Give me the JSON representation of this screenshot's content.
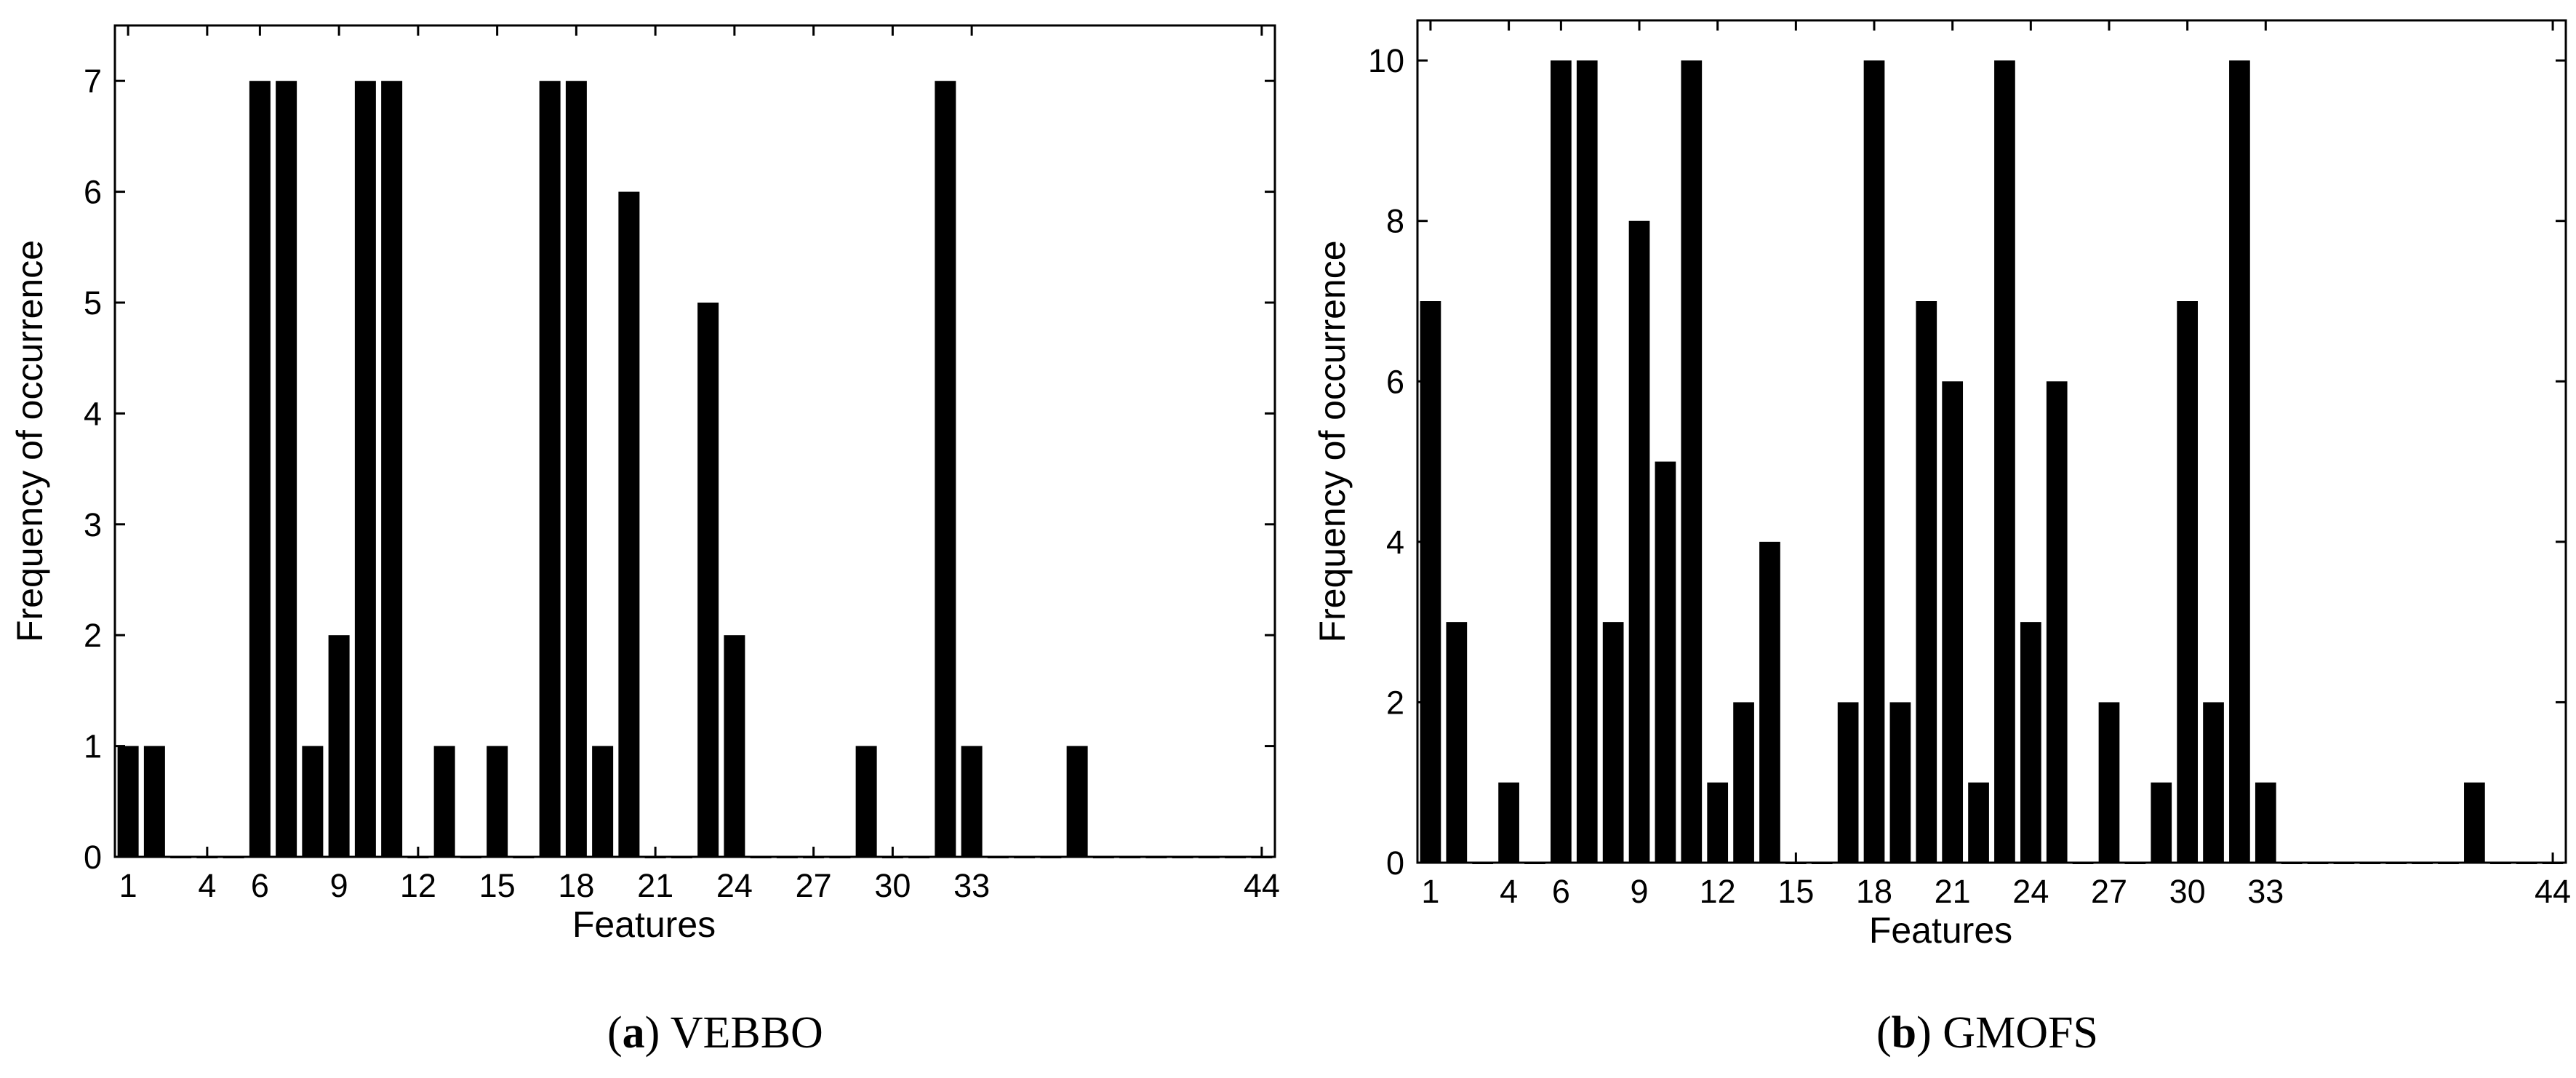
{
  "captions": [
    {
      "letter": "a",
      "name": "VEBBO"
    },
    {
      "letter": "b",
      "name": "GMOFS"
    }
  ],
  "chart_data": [
    {
      "type": "bar",
      "xlabel": "Features",
      "ylabel": "Frequency of occurrence",
      "xlim": [
        0.5,
        44.5
      ],
      "ylim": [
        0,
        7.5
      ],
      "xticks": [
        1,
        4,
        6,
        9,
        12,
        15,
        18,
        21,
        24,
        27,
        30,
        33,
        44
      ],
      "yticks": [
        0,
        1,
        2,
        3,
        4,
        5,
        6,
        7
      ],
      "grid": false,
      "bar_color": "#000000",
      "x": [
        1,
        2,
        3,
        4,
        5,
        6,
        7,
        8,
        9,
        10,
        11,
        12,
        13,
        14,
        15,
        16,
        17,
        18,
        19,
        20,
        21,
        22,
        23,
        24,
        25,
        26,
        27,
        28,
        29,
        30,
        31,
        32,
        33,
        34,
        35,
        36,
        37,
        38,
        39,
        40,
        41,
        42,
        43,
        44
      ],
      "values": [
        1,
        1,
        0,
        0,
        0,
        7,
        7,
        1,
        2,
        7,
        7,
        0,
        1,
        0,
        1,
        0,
        7,
        7,
        1,
        6,
        0,
        0,
        5,
        2,
        0,
        0,
        0,
        0,
        1,
        0,
        0,
        7,
        1,
        0,
        0,
        0,
        1,
        0,
        0,
        0,
        0,
        0,
        0,
        0
      ]
    },
    {
      "type": "bar",
      "xlabel": "Features",
      "ylabel": "Frequency of occurrence",
      "xlim": [
        0.5,
        44.5
      ],
      "ylim": [
        0,
        10.5
      ],
      "xticks": [
        1,
        4,
        6,
        9,
        12,
        15,
        18,
        21,
        24,
        27,
        30,
        33,
        44
      ],
      "yticks": [
        0,
        2,
        4,
        6,
        8,
        10
      ],
      "grid": false,
      "bar_color": "#000000",
      "x": [
        1,
        2,
        3,
        4,
        5,
        6,
        7,
        8,
        9,
        10,
        11,
        12,
        13,
        14,
        15,
        16,
        17,
        18,
        19,
        20,
        21,
        22,
        23,
        24,
        25,
        26,
        27,
        28,
        29,
        30,
        31,
        32,
        33,
        34,
        35,
        36,
        37,
        38,
        39,
        40,
        41,
        42,
        43,
        44
      ],
      "values": [
        7,
        3,
        0,
        1,
        0,
        10,
        10,
        3,
        8,
        5,
        10,
        1,
        2,
        4,
        0,
        0,
        2,
        10,
        2,
        7,
        6,
        1,
        10,
        3,
        6,
        0,
        2,
        0,
        1,
        7,
        2,
        10,
        1,
        0,
        0,
        0,
        0,
        0,
        0,
        0,
        1,
        0,
        0,
        0
      ]
    }
  ]
}
